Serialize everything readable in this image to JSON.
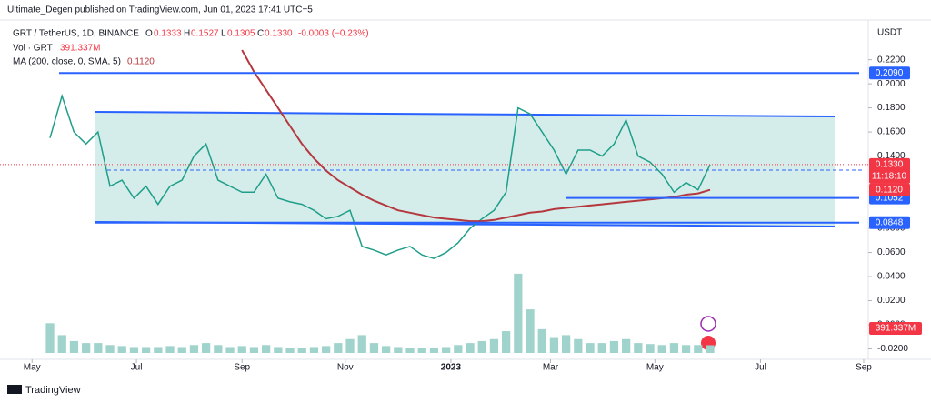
{
  "header": {
    "published": "Ultimate_Degen published on TradingView.com, Jun 01, 2023 17:41 UTC+5",
    "ohlc": [
      "O",
      "0.1333",
      "H",
      "0.1527",
      "L",
      "0.1305",
      "C",
      "0.1330",
      "-0.0003 (−0.23%)"
    ],
    "currency": "USDT",
    "brand": "TradingView"
  },
  "chart_data": {
    "type": "line",
    "categories": [
      null,
      null,
      null,
      null,
      null,
      null,
      null,
      null,
      null,
      null,
      null,
      null,
      null,
      null,
      null,
      null,
      null,
      null,
      null,
      null,
      null,
      null,
      null,
      null,
      null,
      null,
      null,
      null,
      null,
      null,
      null,
      null,
      null,
      null,
      null,
      null,
      null,
      null,
      null,
      null,
      null,
      null,
      null,
      null,
      null,
      null,
      null,
      null,
      null,
      null,
      null,
      null,
      null,
      null,
      null,
      null
    ],
    "series": [
      {
        "name": "GRT / TetherUS, 1D, BINANCE",
        "color": "#1f9e89",
        "values": [
          0.155,
          0.19,
          0.16,
          0.15,
          0.16,
          0.115,
          0.12,
          0.105,
          0.115,
          0.1,
          0.115,
          0.12,
          0.14,
          0.15,
          0.12,
          0.115,
          0.11,
          0.11,
          0.125,
          0.105,
          0.102,
          0.1,
          0.095,
          0.088,
          0.09,
          0.095,
          0.065,
          0.062,
          0.058,
          0.062,
          0.065,
          0.058,
          0.055,
          0.06,
          0.068,
          0.08,
          0.088,
          0.095,
          0.11,
          0.18,
          0.175,
          0.16,
          0.145,
          0.125,
          0.145,
          0.145,
          0.14,
          0.15,
          0.17,
          0.14,
          0.135,
          0.125,
          0.11,
          0.118,
          0.112,
          0.133
        ]
      },
      {
        "name": "MA (200, close, 0, SMA, 5)",
        "color": "#b5383e",
        "values": [
          null,
          null,
          null,
          null,
          null,
          null,
          null,
          null,
          null,
          null,
          null,
          null,
          null,
          null,
          null,
          null,
          0.228,
          0.21,
          0.195,
          0.18,
          0.165,
          0.15,
          0.138,
          0.128,
          0.12,
          0.114,
          0.108,
          0.103,
          0.099,
          0.095,
          0.093,
          0.091,
          0.089,
          0.088,
          0.087,
          0.086,
          0.086,
          0.087,
          0.089,
          0.091,
          0.093,
          0.094,
          0.096,
          0.097,
          0.098,
          0.099,
          0.1,
          0.101,
          0.102,
          0.103,
          0.104,
          0.105,
          0.106,
          0.108,
          0.109,
          0.112
        ]
      }
    ],
    "volume": {
      "name": "Vol · GRT",
      "color": "#9fd3cb",
      "ylim": [
        0,
        4500
      ],
      "values": [
        1500,
        900,
        600,
        500,
        500,
        400,
        350,
        300,
        300,
        300,
        350,
        300,
        400,
        500,
        400,
        300,
        350,
        300,
        400,
        300,
        250,
        250,
        300,
        350,
        500,
        700,
        900,
        500,
        350,
        300,
        250,
        250,
        250,
        300,
        400,
        500,
        600,
        700,
        1100,
        4000,
        2200,
        1200,
        800,
        900,
        700,
        500,
        500,
        600,
        700,
        500,
        450,
        400,
        500,
        400,
        400,
        391.337
      ],
      "last_label": {
        "value": 391.337,
        "label": "391.337M"
      }
    },
    "last_price": {
      "value": 0.133,
      "label": "0.1330"
    },
    "countdown": "11:18:10",
    "ma_last": {
      "value": 0.112,
      "label": "0.1120"
    },
    "levels": [
      {
        "value": 0.209,
        "label": "0.2090"
      },
      {
        "value": 0.1052,
        "label": "0.1052"
      },
      {
        "value": 0.0848,
        "label": "0.0848"
      }
    ],
    "xlim": [
      -4.17,
      68.18
    ],
    "xticks": [
      {
        "value": -1.5,
        "label": "May"
      },
      {
        "value": 7.2,
        "label": "Jul"
      },
      {
        "value": 16.0,
        "label": "Sep"
      },
      {
        "value": 24.6,
        "label": "Nov"
      },
      {
        "value": 33.4,
        "label": "2023"
      },
      {
        "value": 41.7,
        "label": "Mar"
      },
      {
        "value": 50.4,
        "label": "May"
      },
      {
        "value": 59.2,
        "label": "Jul"
      },
      {
        "value": 67.8,
        "label": "Sep"
      }
    ],
    "ylim": [
      -0.0264,
      0.2484
    ],
    "yticks": [
      {
        "value": 0.22,
        "label": "0.2200"
      },
      {
        "value": 0.2,
        "label": "0.2000"
      },
      {
        "value": 0.18,
        "label": "0.1800"
      },
      {
        "value": 0.16,
        "label": "0.1600"
      },
      {
        "value": 0.14,
        "label": "0.1400"
      },
      {
        "value": 0.08,
        "label": "0.0800"
      },
      {
        "value": 0.06,
        "label": "0.0600"
      },
      {
        "value": 0.04,
        "label": "0.0400"
      },
      {
        "value": 0.02,
        "label": "0.0200"
      },
      {
        "value": 0,
        "label": "0.0000"
      },
      {
        "value": -0.02,
        "label": "-0.0200"
      }
    ]
  }
}
